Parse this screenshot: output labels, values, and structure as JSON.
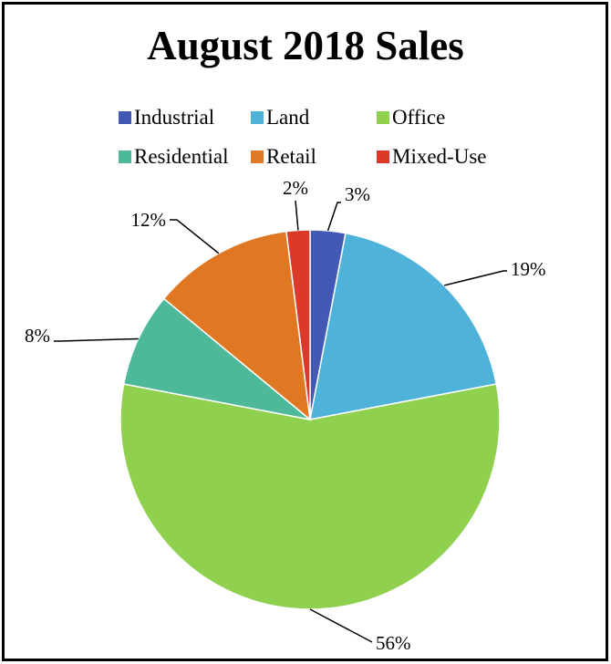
{
  "chart_data": {
    "type": "pie",
    "title": "August 2018 Sales",
    "categories": [
      "Industrial",
      "Land",
      "Office",
      "Residential",
      "Retail",
      "Mixed-Use"
    ],
    "values": [
      3,
      19,
      56,
      8,
      12,
      2
    ],
    "labels": [
      "3%",
      "19%",
      "56%",
      "8%",
      "12%",
      "2%"
    ],
    "colors": [
      "#4259B5",
      "#4FB3D9",
      "#8FD14F",
      "#4DB89A",
      "#E07722",
      "#DB3A2A"
    ],
    "legend": "top",
    "start_angle": "12 o'clock",
    "direction": "clockwise"
  }
}
